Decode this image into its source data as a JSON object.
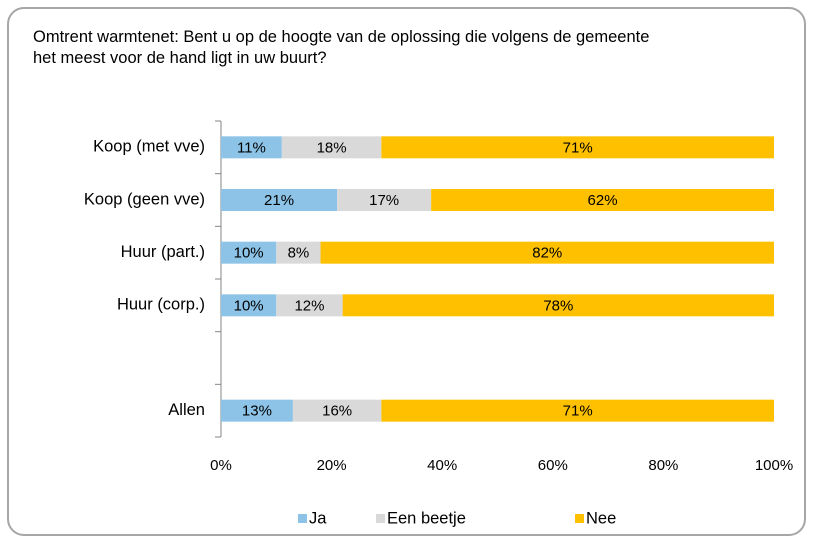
{
  "chart_data": {
    "type": "stacked-bar-horizontal",
    "title": "Omtrent warmtenet: Bent u op de hoogte van de oplossing die volgens de gemeente het meest voor de hand ligt in uw buurt?",
    "categories": [
      "Koop (met vve)",
      "Koop (geen vve)",
      "Huur (part.)",
      "Huur (corp.)",
      null,
      "Allen"
    ],
    "series": [
      {
        "name": "Ja",
        "color": "#8cc3e6",
        "values": [
          11,
          21,
          10,
          10,
          null,
          13
        ],
        "value_labels": [
          "11%",
          "21%",
          "10%",
          "10%",
          null,
          "13%"
        ]
      },
      {
        "name": "Een beetje",
        "color": "#d9d9d9",
        "values": [
          18,
          17,
          8,
          12,
          null,
          16
        ],
        "value_labels": [
          "18%",
          "17%",
          "8%",
          "12%",
          null,
          "16%"
        ]
      },
      {
        "name": "Nee",
        "color": "#ffc000",
        "values": [
          71,
          62,
          82,
          78,
          null,
          71
        ],
        "value_labels": [
          "71%",
          "62%",
          "82%",
          "78%",
          null,
          "71%"
        ]
      }
    ],
    "xlim": [
      0,
      100
    ],
    "xticks": [
      {
        "value": 0,
        "label": "0%"
      },
      {
        "value": 20,
        "label": "20%"
      },
      {
        "value": 40,
        "label": "40%"
      },
      {
        "value": 60,
        "label": "60%"
      },
      {
        "value": 80,
        "label": "80%"
      },
      {
        "value": 100,
        "label": "100%"
      }
    ],
    "legend": "bottom"
  }
}
